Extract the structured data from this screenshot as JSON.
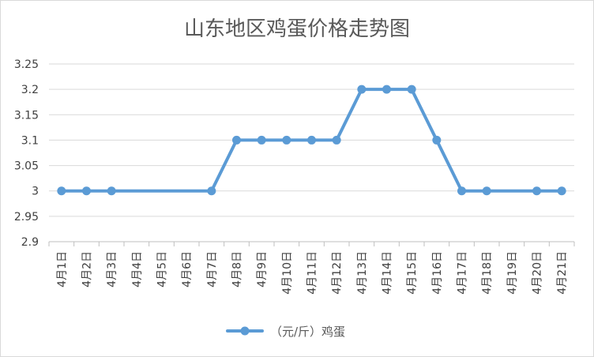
{
  "chart_data": {
    "type": "line",
    "title": "山东地区鸡蛋价格走势图",
    "categories": [
      "4月1日",
      "4月2日",
      "4月3日",
      "4月4日",
      "4月5日",
      "4月6日",
      "4月7日",
      "4月8日",
      "4月9日",
      "4月10日",
      "4月11日",
      "4月12日",
      "4月13日",
      "4月14日",
      "4月15日",
      "4月16日",
      "4月17日",
      "4月18日",
      "4月19日",
      "4月20日",
      "4月21日"
    ],
    "series": [
      {
        "name": "（元/斤）鸡蛋",
        "color": "#5b9bd5",
        "values": [
          3,
          3,
          3,
          null,
          null,
          null,
          3,
          3.1,
          3.1,
          3.1,
          3.1,
          3.1,
          3.2,
          3.2,
          3.2,
          3.1,
          3,
          3,
          null,
          3,
          3
        ],
        "markers": [
          true,
          true,
          true,
          false,
          false,
          false,
          true,
          true,
          true,
          true,
          true,
          true,
          true,
          true,
          true,
          true,
          true,
          true,
          false,
          true,
          true
        ]
      }
    ],
    "yticks": [
      "2.9",
      "2.95",
      "3",
      "3.05",
      "3.1",
      "3.15",
      "3.2",
      "3.25"
    ],
    "ylim": [
      2.9,
      3.25
    ],
    "grid": true,
    "legend_position": "bottom"
  }
}
